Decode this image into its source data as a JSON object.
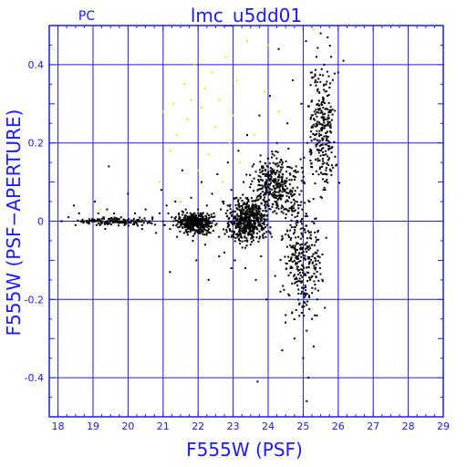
{
  "chart_data": {
    "type": "scatter",
    "title": "lmc_u5dd01",
    "subtitle": "PC",
    "xlabel": "F555W (PSF)",
    "ylabel": "F555W (PSF−APERTURE)",
    "xlim": [
      17.75,
      29.0
    ],
    "ylim": [
      -0.5,
      0.5
    ],
    "x_ticks": [
      18,
      19,
      20,
      21,
      22,
      23,
      24,
      25,
      26,
      27,
      28,
      29
    ],
    "y_ticks": [
      -0.4,
      -0.2,
      0,
      0.2,
      0.4
    ],
    "x_tick_labels": [
      "18",
      "19",
      "20",
      "21",
      "22",
      "23",
      "24",
      "25",
      "26",
      "27",
      "28",
      "29"
    ],
    "y_tick_labels": [
      "-0.4",
      "-0.2",
      "0",
      "0.2",
      "0.4"
    ],
    "grid": true,
    "colors": {
      "frame": "#1a1aff",
      "points": "#000000",
      "highlight": "#ffdd00"
    },
    "series": [
      {
        "color": "#000000",
        "points": [
          [
            18.1,
            0.0
          ],
          [
            18.3,
            0.01
          ],
          [
            18.45,
            0.04
          ],
          [
            18.5,
            -0.01
          ],
          [
            18.6,
            0.02
          ],
          [
            18.75,
            0.0
          ],
          [
            18.9,
            0.0
          ],
          [
            19.0,
            0.0
          ],
          [
            19.05,
            0.05
          ],
          [
            19.1,
            -0.01
          ],
          [
            19.15,
            0.02
          ],
          [
            19.2,
            0.0
          ],
          [
            19.25,
            0.0
          ],
          [
            19.3,
            0.01
          ],
          [
            19.35,
            -0.02
          ],
          [
            19.4,
            0.03
          ],
          [
            19.45,
            0.14
          ],
          [
            19.5,
            0.0
          ],
          [
            19.6,
            0.02
          ],
          [
            19.7,
            0.0
          ],
          [
            19.8,
            0.01
          ],
          [
            19.9,
            -0.01
          ],
          [
            20.0,
            0.07
          ],
          [
            20.1,
            0.0
          ],
          [
            20.2,
            0.02
          ],
          [
            20.3,
            0.0
          ],
          [
            20.4,
            -0.02
          ],
          [
            20.5,
            0.03
          ],
          [
            20.6,
            0.0
          ],
          [
            20.7,
            0.01
          ],
          [
            20.8,
            -0.03
          ],
          [
            20.9,
            0.02
          ],
          [
            20.95,
            0.08
          ],
          [
            21.0,
            0.0
          ],
          [
            21.05,
            -0.01
          ],
          [
            21.1,
            0.04
          ],
          [
            21.15,
            0.02
          ],
          [
            21.2,
            -0.02
          ],
          [
            21.25,
            0.01
          ],
          [
            21.3,
            0.0
          ],
          [
            21.35,
            0.05
          ],
          [
            21.4,
            -0.04
          ],
          [
            21.45,
            0.02
          ],
          [
            21.5,
            0.0
          ],
          [
            21.55,
            0.13
          ],
          [
            21.6,
            -0.03
          ],
          [
            21.65,
            0.03
          ],
          [
            21.7,
            0.01
          ],
          [
            21.75,
            -0.01
          ],
          [
            21.8,
            0.06
          ],
          [
            21.85,
            -0.05
          ],
          [
            21.9,
            0.02
          ],
          [
            21.95,
            0.0
          ],
          [
            22.0,
            0.03
          ],
          [
            22.05,
            -0.02
          ],
          [
            22.1,
            0.1
          ],
          [
            22.15,
            0.01
          ],
          [
            22.2,
            -0.06
          ],
          [
            22.25,
            0.04
          ],
          [
            22.3,
            0.0
          ],
          [
            22.35,
            -0.03
          ],
          [
            22.4,
            0.07
          ],
          [
            22.45,
            0.02
          ],
          [
            22.5,
            -0.01
          ],
          [
            22.55,
            0.12
          ],
          [
            22.6,
            -0.04
          ],
          [
            22.65,
            0.03
          ],
          [
            22.7,
            0.05
          ],
          [
            22.75,
            -0.08
          ],
          [
            22.8,
            0.02
          ],
          [
            22.85,
            0.15
          ],
          [
            22.9,
            -0.02
          ],
          [
            22.95,
            0.08
          ],
          [
            23.0,
            0.0
          ],
          [
            23.05,
            -0.1
          ],
          [
            23.1,
            0.06
          ],
          [
            23.15,
            0.18
          ],
          [
            23.2,
            -0.05
          ],
          [
            23.25,
            0.03
          ],
          [
            23.3,
            0.1
          ],
          [
            23.35,
            -0.12
          ],
          [
            23.4,
            0.22
          ],
          [
            23.45,
            0.04
          ],
          [
            23.5,
            -0.06
          ],
          [
            23.55,
            0.14
          ],
          [
            23.6,
            0.02
          ],
          [
            23.65,
            -0.15
          ],
          [
            23.7,
            0.08
          ],
          [
            23.75,
            0.27
          ],
          [
            23.8,
            -0.09
          ],
          [
            23.85,
            0.12
          ],
          [
            23.9,
            0.05
          ],
          [
            23.95,
            -0.2
          ],
          [
            24.0,
            0.16
          ],
          [
            24.05,
            0.32
          ],
          [
            24.1,
            -0.04
          ],
          [
            24.15,
            0.09
          ],
          [
            24.2,
            -0.14
          ],
          [
            24.25,
            0.2
          ],
          [
            24.3,
            0.44
          ],
          [
            24.35,
            -0.18
          ],
          [
            24.4,
            0.11
          ],
          [
            24.45,
            0.03
          ],
          [
            24.5,
            -0.24
          ],
          [
            24.55,
            0.25
          ],
          [
            24.6,
            0.06
          ],
          [
            24.65,
            -0.1
          ],
          [
            24.7,
            0.36
          ],
          [
            24.75,
            -0.3
          ],
          [
            24.8,
            0.14
          ],
          [
            24.85,
            0.02
          ],
          [
            24.9,
            -0.21
          ],
          [
            24.95,
            0.3
          ],
          [
            25.0,
            -0.35
          ],
          [
            25.02,
            0.1
          ],
          [
            25.05,
            -0.06
          ],
          [
            25.08,
            0.46
          ],
          [
            25.1,
            -0.28
          ],
          [
            25.12,
            0.2
          ],
          [
            25.15,
            -0.4
          ],
          [
            25.18,
            0.05
          ],
          [
            25.2,
            -0.15
          ],
          [
            25.22,
            0.38
          ],
          [
            25.25,
            -0.25
          ],
          [
            25.28,
            0.12
          ],
          [
            25.3,
            -0.32
          ],
          [
            25.32,
            0.28
          ],
          [
            25.35,
            -0.08
          ],
          [
            25.38,
            0.42
          ],
          [
            25.4,
            -0.2
          ],
          [
            25.42,
            0.16
          ],
          [
            25.45,
            0.33
          ],
          [
            25.48,
            -0.12
          ],
          [
            25.5,
            0.48
          ],
          [
            25.55,
            0.24
          ],
          [
            25.6,
            0.4
          ],
          [
            25.65,
            0.35
          ],
          [
            25.7,
            0.47
          ],
          [
            25.8,
            0.42
          ],
          [
            26.0,
            0.38
          ],
          [
            26.15,
            0.41
          ],
          [
            25.1,
            -0.46
          ],
          [
            23.7,
            -0.41
          ],
          [
            24.4,
            -0.33
          ],
          [
            22.95,
            -0.12
          ],
          [
            21.95,
            -0.1
          ],
          [
            22.6,
            -0.09
          ],
          [
            20.4,
            -0.01
          ],
          [
            21.2,
            -0.13
          ],
          [
            22.3,
            -0.15
          ]
        ]
      },
      {
        "color": "#ffdd00",
        "points": [
          [
            19.2,
            0.03
          ],
          [
            20.9,
            0.1
          ],
          [
            21.0,
            0.28
          ],
          [
            21.2,
            0.18
          ],
          [
            21.3,
            0.3
          ],
          [
            21.4,
            0.22
          ],
          [
            21.5,
            0.05
          ],
          [
            21.6,
            0.35
          ],
          [
            21.7,
            0.26
          ],
          [
            21.8,
            0.31
          ],
          [
            21.9,
            0.4
          ],
          [
            22.0,
            0.13
          ],
          [
            22.1,
            0.29
          ],
          [
            22.2,
            0.34
          ],
          [
            22.3,
            0.17
          ],
          [
            22.4,
            0.38
          ],
          [
            22.5,
            0.24
          ],
          [
            22.6,
            0.31
          ],
          [
            22.7,
            0.1
          ],
          [
            22.8,
            0.42
          ],
          [
            22.9,
            0.2
          ],
          [
            23.0,
            0.27
          ],
          [
            23.1,
            0.36
          ],
          [
            23.2,
            0.15
          ],
          [
            23.4,
            0.46
          ],
          [
            23.6,
            0.22
          ],
          [
            23.9,
            0.33
          ],
          [
            24.0,
            0.45
          ],
          [
            24.3,
            0.28
          ],
          [
            25.3,
            0.49
          ]
        ]
      }
    ],
    "dense_clusters": [
      {
        "x_range": [
          21.2,
          22.6
        ],
        "y_range": [
          -0.04,
          0.03
        ],
        "count": 420
      },
      {
        "x_range": [
          22.6,
          24.2
        ],
        "y_range": [
          -0.08,
          0.08
        ],
        "count": 520
      },
      {
        "x_range": [
          23.2,
          25.2
        ],
        "y_range": [
          -0.02,
          0.2
        ],
        "count": 380
      },
      {
        "x_range": [
          24.2,
          25.8
        ],
        "y_range": [
          -0.3,
          0.1
        ],
        "count": 300
      },
      {
        "x_range": [
          25.0,
          26.1
        ],
        "y_range": [
          0.0,
          0.48
        ],
        "count": 260
      },
      {
        "x_range": [
          18.0,
          21.2
        ],
        "y_range": [
          -0.015,
          0.015
        ],
        "count": 160
      }
    ]
  }
}
